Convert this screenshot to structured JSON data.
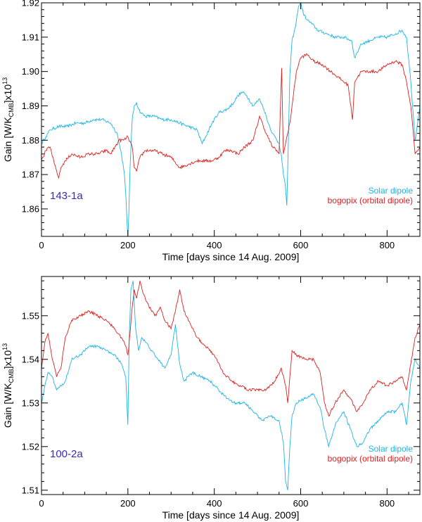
{
  "chart_data": [
    {
      "type": "line",
      "panel_label": "143-1a",
      "title": "",
      "xlabel": "Time [days since 14 Aug. 2009]",
      "ylabel": {
        "pre": "Gain [W/K",
        "sub": "CMB",
        "mid": "]x10",
        "sup": "13"
      },
      "xlim": [
        0,
        876
      ],
      "ylim": [
        1.852,
        1.92
      ],
      "xticks": [
        0,
        200,
        400,
        600,
        800
      ],
      "yticks": [
        1.86,
        1.87,
        1.88,
        1.89,
        1.9,
        1.91,
        1.92
      ],
      "ytick_labels": [
        "1.86",
        "1.87",
        "1.88",
        "1.89",
        "1.90",
        "1.91",
        "1.92"
      ],
      "legend_position": "bottom-right",
      "series": [
        {
          "name": "Solar dipole",
          "color": "#1eb4e6",
          "x": [
            0,
            10,
            20,
            40,
            60,
            80,
            100,
            120,
            140,
            160,
            175,
            185,
            192,
            196,
            198,
            200,
            202,
            205,
            210,
            215,
            220,
            225,
            230,
            240,
            260,
            280,
            300,
            320,
            340,
            360,
            372,
            380,
            395,
            410,
            430,
            445,
            455,
            465,
            475,
            490,
            505,
            515,
            525,
            535,
            545,
            550,
            555,
            560,
            565,
            568,
            570,
            575,
            580,
            588,
            595,
            600,
            606,
            615,
            625,
            640,
            660,
            680,
            700,
            718,
            725,
            740,
            760,
            780,
            800,
            820,
            835,
            845,
            855,
            865,
            876
          ],
          "y": [
            1.879,
            1.881,
            1.883,
            1.884,
            1.884,
            1.885,
            1.885,
            1.886,
            1.886,
            1.885,
            1.882,
            1.876,
            1.87,
            1.862,
            1.856,
            1.852,
            1.858,
            1.872,
            1.886,
            1.89,
            1.891,
            1.889,
            1.888,
            1.887,
            1.887,
            1.886,
            1.886,
            1.885,
            1.884,
            1.883,
            1.879,
            1.881,
            1.885,
            1.888,
            1.889,
            1.891,
            1.893,
            1.894,
            1.893,
            1.89,
            1.892,
            1.889,
            1.885,
            1.882,
            1.88,
            1.879,
            1.876,
            1.87,
            1.866,
            1.861,
            1.872,
            1.899,
            1.909,
            1.913,
            1.919,
            1.92,
            1.917,
            1.915,
            1.914,
            1.912,
            1.911,
            1.91,
            1.91,
            1.909,
            1.904,
            1.908,
            1.909,
            1.91,
            1.91,
            1.911,
            1.912,
            1.91,
            1.897,
            1.88,
            1.89
          ]
        },
        {
          "name": "bogopix (orbital dipole)",
          "color": "#e02020",
          "x": [
            0,
            10,
            20,
            30,
            40,
            45,
            55,
            70,
            90,
            110,
            130,
            150,
            160,
            170,
            180,
            190,
            200,
            210,
            215,
            220,
            228,
            240,
            260,
            280,
            300,
            320,
            340,
            360,
            372,
            380,
            395,
            410,
            425,
            440,
            455,
            470,
            490,
            505,
            520,
            535,
            545,
            550,
            556,
            560,
            565,
            570,
            575,
            580,
            590,
            600,
            615,
            630,
            650,
            670,
            690,
            710,
            720,
            725,
            740,
            760,
            780,
            800,
            820,
            835,
            845,
            855,
            865,
            876
          ],
          "y": [
            1.874,
            1.877,
            1.878,
            1.873,
            1.869,
            1.872,
            1.874,
            1.876,
            1.875,
            1.876,
            1.876,
            1.877,
            1.876,
            1.878,
            1.88,
            1.88,
            1.881,
            1.878,
            1.872,
            1.871,
            1.875,
            1.877,
            1.877,
            1.876,
            1.875,
            1.872,
            1.873,
            1.874,
            1.874,
            1.874,
            1.874,
            1.875,
            1.877,
            1.877,
            1.876,
            1.878,
            1.88,
            1.887,
            1.882,
            1.878,
            1.877,
            1.876,
            1.901,
            1.876,
            1.879,
            1.882,
            1.885,
            1.89,
            1.9,
            1.904,
            1.905,
            1.903,
            1.902,
            1.9,
            1.898,
            1.896,
            1.886,
            1.897,
            1.9,
            1.9,
            1.9,
            1.902,
            1.903,
            1.902,
            1.897,
            1.89,
            1.876,
            1.878
          ]
        }
      ]
    },
    {
      "type": "line",
      "panel_label": "100-2a",
      "title": "",
      "xlabel": "Time [days since 14 Aug. 2009]",
      "ylabel": {
        "pre": "Gain [W/K",
        "sub": "CMB",
        "mid": "]x10",
        "sup": "13"
      },
      "xlim": [
        0,
        876
      ],
      "ylim": [
        1.509,
        1.559
      ],
      "xticks": [
        0,
        200,
        400,
        600,
        800
      ],
      "yticks": [
        1.51,
        1.52,
        1.53,
        1.54,
        1.55
      ],
      "ytick_labels": [
        "1.51",
        "1.52",
        "1.53",
        "1.54",
        "1.55"
      ],
      "legend_position": "bottom-right",
      "series": [
        {
          "name": "Solar dipole",
          "color": "#1eb4e6",
          "x": [
            0,
            8,
            15,
            25,
            35,
            45,
            55,
            70,
            90,
            110,
            130,
            150,
            170,
            185,
            195,
            200,
            203,
            207,
            212,
            218,
            225,
            232,
            240,
            255,
            270,
            285,
            300,
            310,
            320,
            330,
            350,
            370,
            390,
            410,
            430,
            450,
            470,
            490,
            510,
            530,
            550,
            560,
            565,
            570,
            575,
            580,
            590,
            610,
            630,
            645,
            655,
            665,
            680,
            700,
            715,
            730,
            745,
            760,
            780,
            800,
            820,
            835,
            845,
            855,
            865,
            876
          ],
          "y": [
            1.53,
            1.534,
            1.537,
            1.536,
            1.533,
            1.534,
            1.535,
            1.54,
            1.541,
            1.543,
            1.543,
            1.542,
            1.541,
            1.539,
            1.536,
            1.525,
            1.545,
            1.556,
            1.558,
            1.547,
            1.542,
            1.545,
            1.544,
            1.542,
            1.54,
            1.538,
            1.541,
            1.548,
            1.539,
            1.535,
            1.537,
            1.536,
            1.535,
            1.533,
            1.531,
            1.53,
            1.53,
            1.528,
            1.526,
            1.527,
            1.526,
            1.521,
            1.512,
            1.51,
            1.52,
            1.527,
            1.53,
            1.531,
            1.532,
            1.529,
            1.524,
            1.52,
            1.525,
            1.528,
            1.524,
            1.52,
            1.521,
            1.524,
            1.526,
            1.528,
            1.528,
            1.53,
            1.525,
            1.535,
            1.54,
            1.538
          ]
        },
        {
          "name": "bogopix (orbital dipole)",
          "color": "#e02020",
          "x": [
            0,
            8,
            15,
            25,
            35,
            45,
            55,
            70,
            90,
            110,
            130,
            150,
            170,
            185,
            195,
            200,
            205,
            210,
            215,
            220,
            228,
            236,
            245,
            255,
            265,
            275,
            285,
            300,
            310,
            320,
            330,
            345,
            360,
            380,
            400,
            420,
            440,
            460,
            480,
            500,
            520,
            540,
            555,
            565,
            570,
            575,
            580,
            590,
            610,
            630,
            645,
            655,
            665,
            680,
            700,
            715,
            730,
            745,
            760,
            780,
            800,
            820,
            835,
            845,
            855,
            865,
            876
          ],
          "y": [
            1.538,
            1.544,
            1.546,
            1.54,
            1.536,
            1.538,
            1.545,
            1.549,
            1.55,
            1.551,
            1.55,
            1.549,
            1.547,
            1.545,
            1.543,
            1.541,
            1.546,
            1.552,
            1.556,
            1.554,
            1.558,
            1.555,
            1.553,
            1.551,
            1.55,
            1.552,
            1.549,
            1.547,
            1.551,
            1.556,
            1.551,
            1.548,
            1.545,
            1.543,
            1.541,
            1.537,
            1.535,
            1.534,
            1.533,
            1.533,
            1.533,
            1.535,
            1.538,
            1.534,
            1.53,
            1.536,
            1.542,
            1.541,
            1.54,
            1.54,
            1.537,
            1.53,
            1.527,
            1.53,
            1.533,
            1.531,
            1.528,
            1.53,
            1.533,
            1.535,
            1.534,
            1.535,
            1.536,
            1.533,
            1.539,
            1.545,
            1.548
          ]
        }
      ]
    }
  ]
}
